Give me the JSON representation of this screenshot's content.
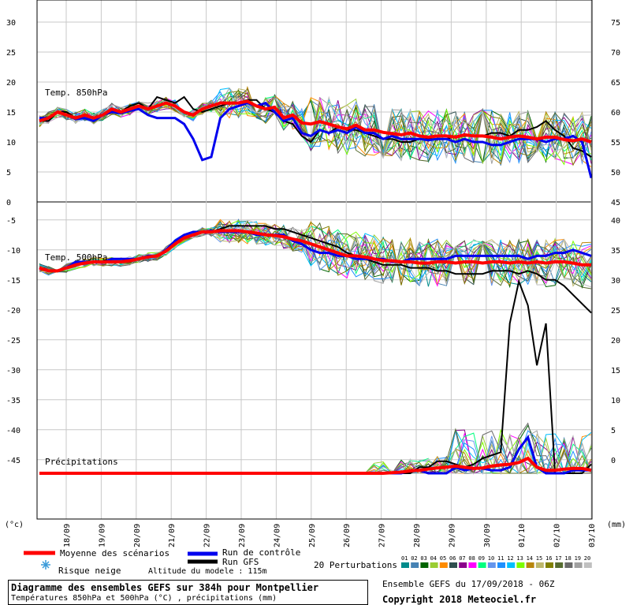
{
  "chart_data": {
    "type": "line",
    "dates": [
      "18/09",
      "19/09",
      "20/09",
      "21/09",
      "22/09",
      "23/09",
      "24/09",
      "25/09",
      "26/09",
      "27/09",
      "28/09",
      "29/09",
      "30/09",
      "01/10",
      "02/10",
      "03/10"
    ],
    "left_ticks_top": [
      "30",
      "25",
      "20",
      "15",
      "10",
      "5",
      "0"
    ],
    "left_ticks_bottom": [
      "-5",
      "-10",
      "-15",
      "-20",
      "-25",
      "-30",
      "-35",
      "-40",
      "-45"
    ],
    "right_ticks_top": [
      "75",
      "70",
      "65",
      "60",
      "55",
      "50",
      "45"
    ],
    "right_ticks_bottom": [
      "40",
      "35",
      "30",
      "25",
      "20",
      "15",
      "10",
      "5",
      "0"
    ],
    "left_unit": "(°c)",
    "right_unit": "(mm)",
    "panel_850_label": "Temp. 850hPa",
    "panel_500_label": "Temp. 500hPa",
    "precip_label": "Précipitations",
    "ylim_850": [
      0,
      32
    ],
    "ylim_500": [
      -53,
      -2
    ],
    "ylim_precip_mm": [
      -7,
      40
    ],
    "series": {
      "mean_850": [
        13.5,
        14,
        15,
        14.5,
        14,
        14.5,
        14,
        14.5,
        15.5,
        15,
        15.5,
        16,
        15.5,
        16,
        16.5,
        16,
        15,
        14.5,
        15.5,
        16,
        16.5,
        16.5,
        16.5,
        16.8,
        16,
        15.5,
        15.8,
        14,
        14.5,
        13.2,
        13,
        13.4,
        13,
        12.5,
        12.2,
        12.8,
        12,
        12,
        11.6,
        11.4,
        11.2,
        11.5,
        11,
        10.8,
        11,
        11,
        10.8,
        11.2,
        11,
        11,
        10.8,
        10.5,
        10.8,
        11,
        10.8,
        10.5,
        10.8,
        10.8,
        10.4,
        10.2,
        10.5,
        10
      ],
      "ctrl_850": [
        14,
        14,
        15,
        14.5,
        13.8,
        14,
        13.5,
        14.5,
        15,
        14.8,
        15.2,
        15.5,
        14.5,
        14,
        14,
        14,
        13,
        10.5,
        7,
        7.5,
        14,
        15.5,
        16,
        16.5,
        16,
        16.5,
        15,
        13.5,
        14,
        11.5,
        11,
        12,
        11.5,
        12,
        11.5,
        12.5,
        11.5,
        11.5,
        10.5,
        11,
        10.5,
        10.5,
        10.5,
        10.3,
        10.5,
        10.5,
        10,
        10.5,
        10,
        10,
        9.5,
        9.5,
        10,
        10.5,
        10.5,
        10.5,
        10,
        10.5,
        10.5,
        11,
        10,
        4
      ],
      "gfs_850": [
        13.5,
        13.5,
        15,
        15,
        14,
        14,
        13.5,
        14.5,
        15,
        15,
        16,
        16.5,
        15.5,
        17.5,
        17,
        16.5,
        17.5,
        15.5,
        15,
        15.5,
        16,
        16.5,
        16.5,
        17,
        17,
        15.5,
        15,
        13.5,
        13,
        11,
        10,
        12,
        11.5,
        12.5,
        12,
        12,
        11.5,
        11,
        10.5,
        10.5,
        10,
        10,
        10.5,
        10.5,
        10.5,
        10.5,
        11,
        11,
        11,
        11,
        11.5,
        11.5,
        11,
        12,
        12,
        12.5,
        13.5,
        12,
        11,
        9,
        8.5,
        7.5
      ],
      "mean_500": [
        -13,
        -13.5,
        -13.5,
        -13,
        -12.5,
        -12.2,
        -12,
        -12,
        -12,
        -12,
        -11.8,
        -11.5,
        -11.2,
        -11,
        -10.2,
        -9,
        -8,
        -7.5,
        -7,
        -7,
        -6.8,
        -6.8,
        -6.8,
        -7,
        -7.2,
        -7.5,
        -7.6,
        -7.8,
        -8.2,
        -8.5,
        -9,
        -9.5,
        -10,
        -10.5,
        -11,
        -11,
        -11.2,
        -11.5,
        -11.8,
        -11.8,
        -12,
        -12,
        -12.2,
        -12.2,
        -12,
        -12,
        -12.2,
        -12,
        -12,
        -12.2,
        -12,
        -12,
        -12.2,
        -12,
        -12.2,
        -12,
        -12.2,
        -12,
        -12,
        -12.2,
        -12.5,
        -12.5
      ],
      "ctrl_500": [
        -13,
        -13.5,
        -13.5,
        -13,
        -12,
        -12,
        -12,
        -12,
        -11.5,
        -11.5,
        -11.5,
        -11.5,
        -11,
        -11,
        -10,
        -8.5,
        -7.5,
        -7,
        -7,
        -6.8,
        -7,
        -7,
        -7,
        -7,
        -7.5,
        -7.5,
        -7.5,
        -7.5,
        -8.5,
        -9,
        -10,
        -10.5,
        -10.5,
        -11,
        -11,
        -11.5,
        -11.5,
        -11.5,
        -11.5,
        -12,
        -12,
        -11.5,
        -11.5,
        -11.5,
        -11.5,
        -11.5,
        -11,
        -11,
        -11,
        -11,
        -11,
        -11,
        -11,
        -11,
        -11.5,
        -11,
        -11,
        -10.5,
        -10.5,
        -10,
        -10.5,
        -11
      ],
      "gfs_500": [
        -13,
        -13.5,
        -13.5,
        -13,
        -12.5,
        -12,
        -12,
        -12,
        -12,
        -12,
        -12,
        -11.5,
        -11,
        -11,
        -10,
        -9,
        -8,
        -7.5,
        -7,
        -7,
        -6.5,
        -6,
        -6,
        -6,
        -6,
        -6,
        -6.5,
        -6.5,
        -7,
        -7.5,
        -8,
        -8.5,
        -9,
        -9.5,
        -10.5,
        -11,
        -11.5,
        -12,
        -12.5,
        -12.5,
        -12.5,
        -13,
        -13,
        -13,
        -13.5,
        -13.5,
        -14,
        -14,
        -14,
        -14,
        -13.5,
        -13.5,
        -13.5,
        -14,
        -13.5,
        -14,
        -15,
        -15,
        -16,
        -17.5,
        -19,
        -20.5
      ],
      "mean_precip": [
        0,
        0,
        0,
        0,
        0,
        0,
        0,
        0,
        0,
        0,
        0,
        0,
        0,
        0,
        0,
        0,
        0,
        0,
        0,
        0,
        0,
        0,
        0,
        0,
        0,
        0,
        0,
        0,
        0,
        0,
        0,
        0,
        0,
        0,
        0,
        0,
        0,
        0,
        0,
        0.1,
        0.2,
        0.4,
        0.5,
        0.7,
        0.9,
        1,
        1.2,
        1,
        0.8,
        0.9,
        1.2,
        1.4,
        1.5,
        1.8,
        2.5,
        1,
        0.5,
        0.5,
        0.7,
        0.8,
        0.8,
        0.5
      ],
      "ctrl_precip": [
        0,
        0,
        0,
        0,
        0,
        0,
        0,
        0,
        0,
        0,
        0,
        0,
        0,
        0,
        0,
        0,
        0,
        0,
        0,
        0,
        0,
        0,
        0,
        0,
        0,
        0,
        0,
        0,
        0,
        0,
        0,
        0,
        0,
        0,
        0,
        0,
        0,
        0,
        0,
        0,
        0,
        0.5,
        0.5,
        0,
        0,
        0,
        1,
        0.5,
        0.8,
        0.8,
        0.5,
        0.5,
        1,
        4,
        6,
        1,
        0,
        0,
        0,
        0.5,
        0.5,
        0.5
      ],
      "gfs_precip": [
        0,
        0,
        0,
        0,
        0,
        0,
        0,
        0,
        0,
        0,
        0,
        0,
        0,
        0,
        0,
        0,
        0,
        0,
        0,
        0,
        0,
        0,
        0,
        0,
        0,
        0,
        0,
        0,
        0,
        0,
        0,
        0,
        0,
        0,
        0,
        0,
        0,
        0,
        0,
        0,
        0,
        0,
        1,
        1,
        2,
        2,
        1.5,
        1,
        1.5,
        2.5,
        3,
        3.5,
        25,
        32,
        28,
        18,
        25,
        0,
        0,
        0,
        0,
        1.5
      ]
    },
    "colors": {
      "mean": "#ff0000",
      "control": "#0000ee",
      "gfs": "#000000",
      "perturbations": [
        "#008b8b",
        "#4682b4",
        "#006400",
        "#9acd32",
        "#ff8c00",
        "#2f4f4f",
        "#8b008b",
        "#ff00ff",
        "#00ff7f",
        "#6495ed",
        "#1e90ff",
        "#00bfff",
        "#7cfc00",
        "#b8860b",
        "#bdb76b",
        "#808000",
        "#556b2f",
        "#696969",
        "#a0a0a0",
        "#c0c0c0"
      ]
    }
  },
  "legend": {
    "mean_label": "Moyenne des scénarios",
    "control_label": "Run de contrôle",
    "gfs_label": "Run GFS",
    "snow_label": "Risque neige",
    "altitude_label": "Altitude du modele : 115m",
    "perturbations_label": "20 Perturbations",
    "perturbation_numbers": [
      "01",
      "02",
      "03",
      "04",
      "05",
      "06",
      "07",
      "08",
      "09",
      "10",
      "11",
      "12",
      "13",
      "14",
      "15",
      "16",
      "17",
      "18",
      "19",
      "20"
    ]
  },
  "footer": {
    "title": "Diagramme des ensembles GEFS sur 384h pour Montpellier",
    "subtitle": "Températures 850hPa et 500hPa (°C) , précipitations (mm)",
    "ensemble_run": "Ensemble GEFS du 17/09/2018 - 06Z",
    "copyright": "Copyright 2018 Meteociel.fr"
  }
}
